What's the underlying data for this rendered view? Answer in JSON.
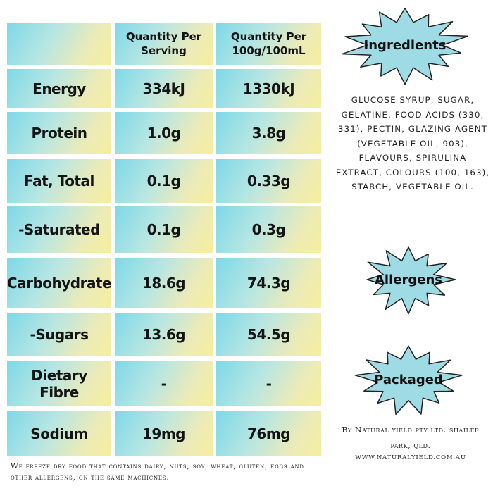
{
  "nutrition_table": {
    "headers": [
      "",
      "Quantity Per Serving",
      "Quantity Per 100g/100mL"
    ],
    "rows": [
      {
        "label": "Energy",
        "per_serving": "334kJ",
        "per_100": "1330kJ"
      },
      {
        "label": "Protein",
        "per_serving": "1.0g",
        "per_100": "3.8g"
      },
      {
        "label": "Fat, Total",
        "per_serving": "0.1g",
        "per_100": "0.33g"
      },
      {
        "label": "-Saturated",
        "per_serving": "0.1g",
        "per_100": "0.3g"
      },
      {
        "label": "Carbohydrate",
        "per_serving": "18.6g",
        "per_100": "74.3g"
      },
      {
        "label": "-Sugars",
        "per_serving": "13.6g",
        "per_100": "54.5g"
      },
      {
        "label": "Dietary Fibre",
        "per_serving": "-",
        "per_100": "-"
      },
      {
        "label": "Sodium",
        "per_serving": "19mg",
        "per_100": "76mg"
      }
    ]
  },
  "footer_note": "We freeze dry food that contains dairy, nuts, soy, wheat, gluten, eggs and other allergens, on the same machicnes.",
  "badges": {
    "ingredients": "Ingredients",
    "allergens": "Allergens",
    "packaged": "Packaged"
  },
  "ingredients_text": "GLUCOSE SYRUP, SUGAR, GELATINE, FOOD ACIDS (330, 331), PECTIN, GLAZING AGENT (VEGETABLE OIL, 903), FLAVOURS, SPIRULINA EXTRACT, COLOURS (100, 163), STARCH, VEGETABLE OIL.",
  "manufacturer": "By Natural yield pty ltd.  shailer park, qld.",
  "website": "WWW.NATURALYIELD.COM.AU",
  "colors": {
    "badge_fill": "#9fdbe4",
    "badge_stroke": "#222222",
    "cell_gradient_start": "#7ed8e8",
    "cell_gradient_end": "#f6ee9e"
  }
}
